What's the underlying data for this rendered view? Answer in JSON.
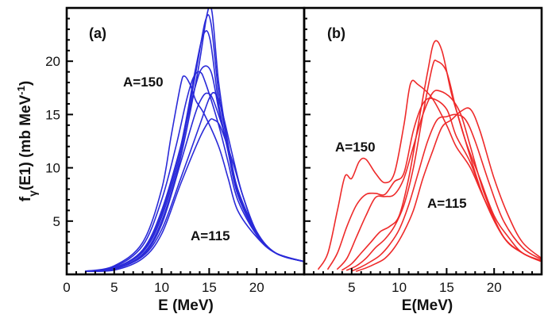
{
  "ylabel_main": "f",
  "ylabel_sub": "γ",
  "ylabel_rest": "(E1)   (mb MeV",
  "ylabel_sup": "-1",
  "ylabel_close": ")",
  "chart_data": [
    {
      "type": "line",
      "panel_label": "(a)",
      "xlabel": "E (MeV)",
      "xlim": [
        0,
        25
      ],
      "ylim": [
        0,
        25
      ],
      "xticks": [
        0,
        5,
        10,
        15,
        20
      ],
      "yticks": [
        5,
        10,
        15,
        20
      ],
      "color": "#2a2ad8",
      "annotations": [
        "A=150",
        "A=115"
      ],
      "series": [
        {
          "x": [
            2,
            5,
            8,
            10,
            11,
            12,
            12.4,
            13,
            13.6,
            14.5,
            16,
            17,
            18,
            20,
            22,
            25
          ],
          "y": [
            0.3,
            0.8,
            3,
            8,
            13,
            17.8,
            18.6,
            17.8,
            16.3,
            15,
            12,
            9,
            6,
            3.5,
            2,
            1.2
          ]
        },
        {
          "x": [
            2,
            5,
            8,
            10,
            11.5,
            12.6,
            13.3,
            14,
            14.6,
            16,
            17,
            18,
            20,
            22,
            25
          ],
          "y": [
            0.3,
            0.7,
            2.7,
            7,
            12,
            16.3,
            18.4,
            19,
            18,
            14,
            10.5,
            7,
            3.7,
            2,
            1.2
          ]
        },
        {
          "x": [
            2,
            5,
            8,
            10,
            12,
            13.5,
            14.3,
            15.2,
            16,
            17,
            18,
            20,
            22,
            25
          ],
          "y": [
            0.3,
            0.6,
            2.3,
            6,
            12,
            17.5,
            19.4,
            19,
            15.5,
            11.5,
            7.5,
            3.8,
            2,
            1.2
          ]
        },
        {
          "x": [
            2,
            5,
            8,
            10,
            12,
            13.5,
            14.4,
            15.1,
            16,
            17,
            18,
            20,
            22,
            25
          ],
          "y": [
            0.3,
            0.6,
            2.2,
            5.7,
            12,
            19,
            22.5,
            22,
            16,
            11.5,
            7.5,
            3.8,
            2,
            1.2
          ]
        },
        {
          "x": [
            2,
            5,
            8,
            10,
            12,
            13.6,
            14.6,
            15.2,
            16,
            17,
            18,
            20,
            22,
            25
          ],
          "y": [
            0.3,
            0.6,
            2.1,
            5.4,
            11.5,
            19,
            23.8,
            23.5,
            17,
            12,
            7.8,
            3.8,
            2,
            1.2
          ]
        },
        {
          "x": [
            2,
            5,
            8,
            10,
            12,
            13.8,
            14.8,
            15.3,
            16,
            17,
            18,
            20,
            22,
            25
          ],
          "y": [
            0.3,
            0.5,
            1.9,
            5,
            11,
            19,
            24.5,
            24.6,
            18,
            12.2,
            8,
            3.9,
            2,
            1.2
          ]
        },
        {
          "x": [
            2,
            5,
            8,
            10,
            12,
            13.5,
            14.2,
            14.8,
            15.5,
            17,
            18,
            20,
            22,
            25
          ],
          "y": [
            0.3,
            0.5,
            1.8,
            4.7,
            10.5,
            15,
            16.5,
            17,
            16.2,
            12,
            8,
            4,
            2,
            1.2
          ]
        },
        {
          "x": [
            2,
            5,
            8,
            10,
            12,
            14,
            15,
            15.6,
            16.3,
            17.5,
            18.5,
            20,
            22,
            25
          ],
          "y": [
            0.3,
            0.5,
            1.7,
            4.2,
            9,
            14,
            16.5,
            17,
            15.5,
            11,
            7.5,
            4,
            2,
            1.2
          ]
        },
        {
          "x": [
            2,
            5,
            8,
            10,
            12,
            14,
            15,
            15.5,
            16.2,
            17.5,
            18.5,
            20,
            22,
            25
          ],
          "y": [
            0.3,
            0.4,
            1.5,
            3.8,
            8.5,
            12.8,
            14.4,
            14.5,
            13.8,
            10.5,
            7.5,
            4,
            2,
            1.2
          ]
        }
      ]
    },
    {
      "type": "line",
      "panel_label": "(b)",
      "xlabel": "E(MeV)",
      "xlim": [
        0,
        25
      ],
      "ylim": [
        0,
        25
      ],
      "xticks": [
        5,
        10,
        15,
        20
      ],
      "yticks": [
        5,
        10,
        15,
        20
      ],
      "color": "#ee2a2a",
      "annotations": [
        "A=150",
        "A=115"
      ],
      "series": [
        {
          "x": [
            1.5,
            2.5,
            3.5,
            4.3,
            5,
            5.8,
            6.5,
            7.5,
            8.5,
            9.5,
            10.5,
            11.2,
            12,
            13.5,
            15,
            16,
            17.5,
            19,
            21,
            23,
            25
          ],
          "y": [
            0.5,
            2,
            6,
            9.2,
            9,
            10.6,
            10.8,
            9.5,
            8.6,
            9.5,
            14,
            17.9,
            17.8,
            16.5,
            14,
            12,
            10,
            7,
            3.5,
            2,
            1.2
          ]
        },
        {
          "x": [
            2.5,
            3.5,
            4.5,
            5.5,
            6.5,
            7.5,
            8.5,
            9.5,
            10.5,
            11.5,
            12.5,
            13.5,
            15,
            16,
            17.5,
            19,
            21,
            23,
            25
          ],
          "y": [
            0.5,
            2,
            4.5,
            6.5,
            7.5,
            7.6,
            7.5,
            8.7,
            9.5,
            13.5,
            16,
            16.5,
            15.5,
            13,
            10.5,
            7,
            3.5,
            2,
            1.2
          ]
        },
        {
          "x": [
            3.5,
            4.5,
            5.5,
            6.5,
            7.5,
            8.5,
            9.5,
            10.5,
            11.5,
            12.5,
            13.5,
            14.3,
            15.5,
            16.5,
            17.5,
            19,
            21,
            23,
            25
          ],
          "y": [
            0.5,
            1.5,
            3.5,
            5.5,
            7.2,
            7.3,
            7.5,
            9,
            12,
            15,
            17,
            17.2,
            16.5,
            15,
            12,
            7.5,
            3.5,
            2,
            1.2
          ]
        },
        {
          "x": [
            4,
            5,
            6,
            7,
            8,
            9,
            10,
            11,
            12,
            13,
            13.7,
            14.5,
            15.5,
            16.5,
            17.5,
            19,
            21,
            23,
            25
          ],
          "y": [
            0.4,
            1,
            2,
            3,
            4,
            4.5,
            5.5,
            9,
            14,
            19,
            21.8,
            21,
            17,
            14,
            11,
            7,
            3.5,
            2,
            1.2
          ]
        },
        {
          "x": [
            4.5,
            5.5,
            6.5,
            7.5,
            8.5,
            9.5,
            10.5,
            11.5,
            12.5,
            13.5,
            14,
            15,
            16,
            17,
            18.5,
            20,
            21.5,
            23,
            25
          ],
          "y": [
            0.4,
            0.8,
            1.5,
            2.5,
            3.3,
            4.5,
            6.5,
            10,
            15,
            19.5,
            20,
            19,
            15.5,
            12.5,
            9,
            5.5,
            3.5,
            2,
            1.3
          ]
        },
        {
          "x": [
            5,
            6,
            7,
            8,
            9,
            10,
            11,
            12,
            13,
            14,
            15,
            16,
            17,
            18,
            19.5,
            21,
            23,
            25
          ],
          "y": [
            0.3,
            0.7,
            1.2,
            1.8,
            2.8,
            4.2,
            6.5,
            9.5,
            12.5,
            14.5,
            14.8,
            15,
            14.5,
            12.5,
            8.5,
            5,
            2.5,
            1.4
          ]
        },
        {
          "x": [
            5.5,
            6.5,
            7.5,
            8.5,
            9.5,
            10.5,
            11.5,
            12.5,
            13.5,
            14.5,
            15.5,
            16.5,
            17.5,
            18.5,
            20,
            21.5,
            23,
            25
          ],
          "y": [
            0.3,
            0.6,
            1,
            1.5,
            2.5,
            4,
            6,
            9,
            11.5,
            13.8,
            14.5,
            15.3,
            15.5,
            13.5,
            9,
            5.5,
            3,
            1.5
          ]
        }
      ]
    }
  ]
}
